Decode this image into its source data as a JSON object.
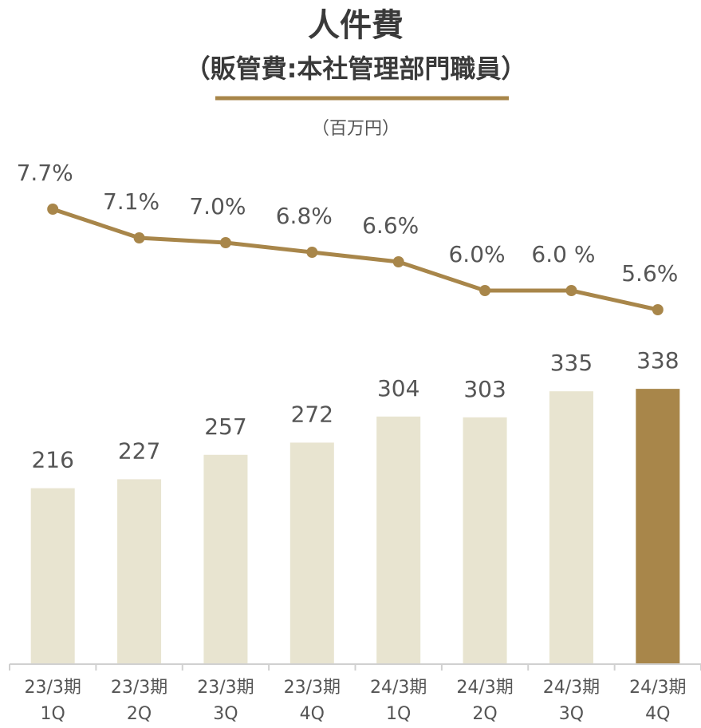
{
  "chart_data": {
    "type": "bar_line",
    "title": "人件費",
    "subtitle": "（販管費:本社管理部門職員）",
    "unit": "（百万円）",
    "categories": [
      "23/3期\n1Q",
      "23/3期\n2Q",
      "23/3期\n3Q",
      "23/3期\n4Q",
      "24/3期\n1Q",
      "24/3期\n2Q",
      "24/3期\n3Q",
      "24/3期\n4Q"
    ],
    "ylim": [
      0,
      688
    ],
    "y2lim": [
      -1.8,
      9.9
    ],
    "series": [
      {
        "type": "bar",
        "values": [
          216,
          227,
          257,
          272,
          304,
          303,
          335,
          338
        ],
        "colors": [
          "#e8e4d0",
          "#e8e4d0",
          "#e8e4d0",
          "#e8e4d0",
          "#e8e4d0",
          "#e8e4d0",
          "#e8e4d0",
          "#a8864a"
        ]
      },
      {
        "type": "line",
        "axis": "y2",
        "color": "#a8864a",
        "values": [
          7.7,
          7.1,
          7.0,
          6.8,
          6.6,
          6.0,
          6.0,
          5.6
        ],
        "value_labels": [
          "7.7%",
          "7.1%",
          "7.0%",
          "6.8%",
          "6.6%",
          "6.0%",
          "6.0 %",
          "5.6%"
        ]
      }
    ]
  }
}
